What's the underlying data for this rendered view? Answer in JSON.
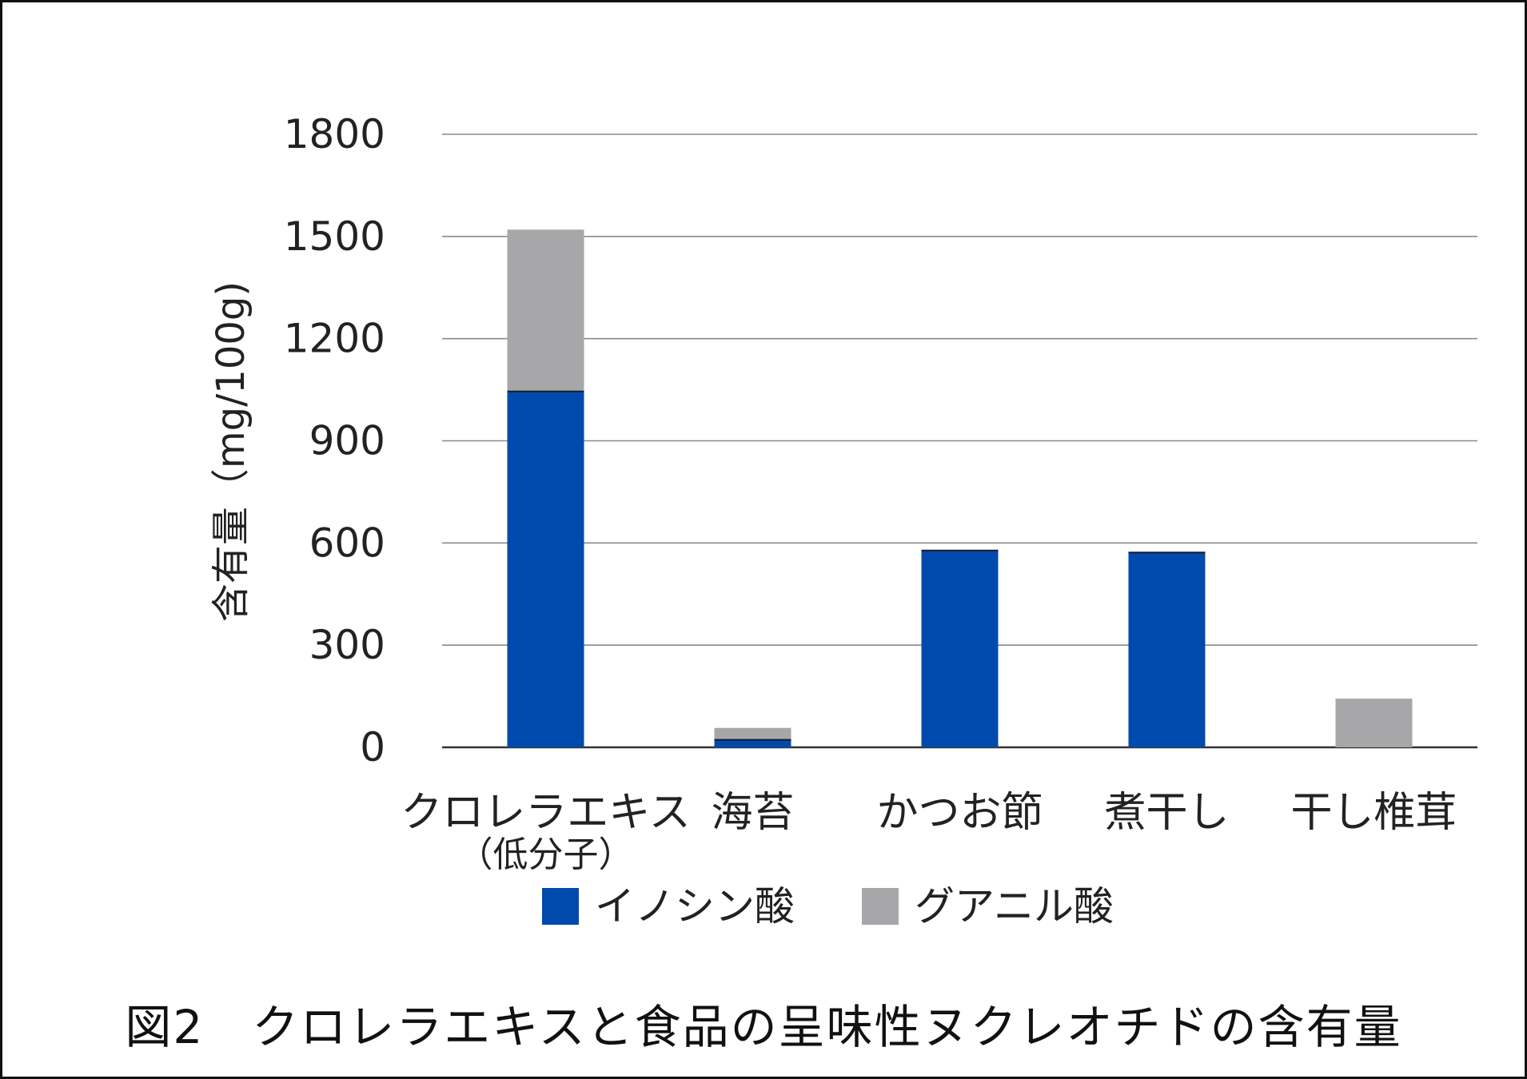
{
  "chart_data": {
    "type": "bar",
    "stacked": true,
    "title": "",
    "xlabel": "",
    "ylabel": "含有量（mg/100g)",
    "ylim": [
      0,
      1800
    ],
    "yticks": [
      0,
      300,
      600,
      900,
      1200,
      1500,
      1800
    ],
    "grid": true,
    "legend_position": "bottom",
    "categories": [
      [
        "クロレラエキス",
        "（低分子）"
      ],
      [
        "海苔"
      ],
      [
        "かつお節"
      ],
      [
        "煮干し"
      ],
      [
        "干し椎茸"
      ]
    ],
    "series": [
      {
        "name": "イノシン酸",
        "color": "#004aad",
        "values": [
          1045,
          22,
          578,
          572,
          0
        ]
      },
      {
        "name": "グアニル酸",
        "color": "#a7a7a9",
        "values": [
          475,
          35,
          0,
          0,
          143
        ]
      }
    ]
  },
  "caption": "図2　クロレラエキスと食品の呈味性ヌクレオチドの含有量"
}
